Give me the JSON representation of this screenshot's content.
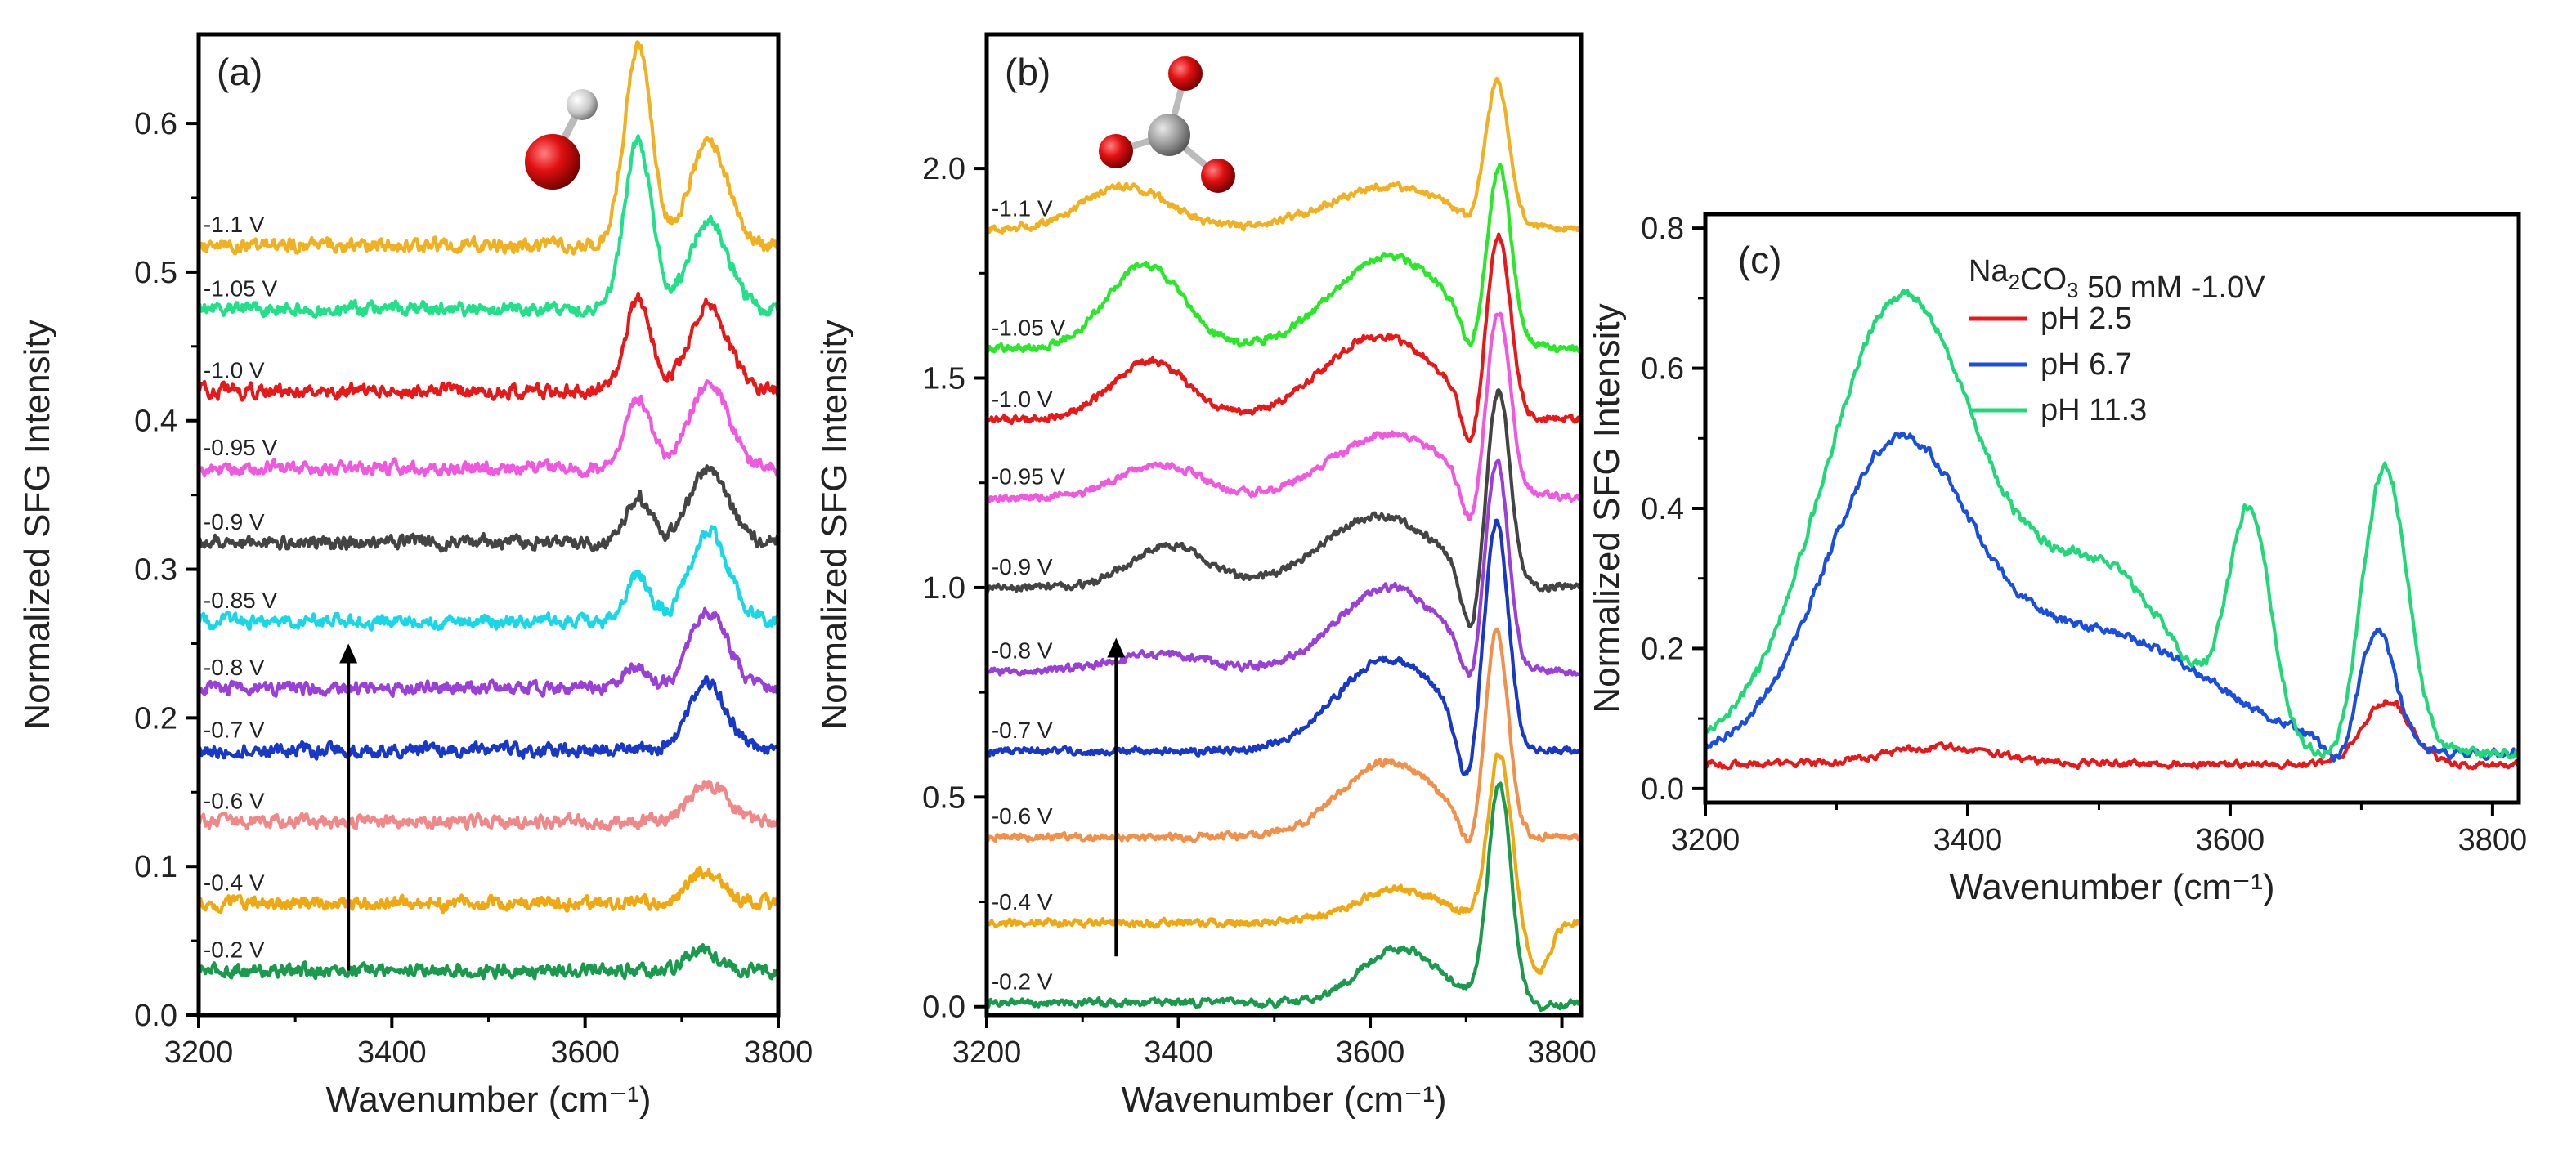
{
  "figure": {
    "xlabel": "Wavenumber (cm⁻¹)",
    "ylabel": "Normalized SFG Intensity"
  },
  "chart_data": [
    {
      "panel": "(a)",
      "type": "line",
      "xlim": [
        3200,
        3800
      ],
      "ylim": [
        0.0,
        0.66
      ],
      "xticks": [
        3200,
        3400,
        3600,
        3800
      ],
      "yticks": [
        0.0,
        0.1,
        0.2,
        0.3,
        0.4,
        0.5,
        0.6
      ],
      "ytick_decimals": 1,
      "xlabel": "Wavenumber (cm⁻¹)",
      "ylabel": "Normalized SFG Intensity",
      "molecule": "hydroxide",
      "arrow": {
        "x": 3355,
        "y_from": 0.03,
        "y_to": 0.25
      },
      "label_x": 3205,
      "series": [
        {
          "name": "-0.2 V",
          "color": "#1a9a4c",
          "base": 0.03,
          "peaks": [
            [
              3722,
              0.015,
              16
            ]
          ],
          "noise": 0.0035
        },
        {
          "name": "-0.4 V",
          "color": "#f0a810",
          "base": 0.075,
          "peaks": [
            [
              3725,
              0.022,
              18
            ]
          ],
          "noise": 0.0035
        },
        {
          "name": "-0.6 V",
          "color": "#f0888a",
          "base": 0.13,
          "peaks": [
            [
              3727,
              0.025,
              20
            ]
          ],
          "noise": 0.0035
        },
        {
          "name": "-0.7 V",
          "color": "#1838c8",
          "base": 0.178,
          "peaks": [
            [
              3727,
              0.045,
              20
            ]
          ],
          "noise": 0.0035
        },
        {
          "name": "-0.8 V",
          "color": "#9a40d8",
          "base": 0.22,
          "peaks": [
            [
              3650,
              0.015,
              12
            ],
            [
              3728,
              0.05,
              20
            ]
          ],
          "noise": 0.0035
        },
        {
          "name": "-0.85 V",
          "color": "#18d8e8",
          "base": 0.265,
          "peaks": [
            [
              3655,
              0.03,
              13
            ],
            [
              3728,
              0.06,
              20
            ]
          ],
          "noise": 0.0035
        },
        {
          "name": "-0.9 V",
          "color": "#444444",
          "base": 0.318,
          "peaks": [
            [
              3655,
              0.03,
              13
            ],
            [
              3728,
              0.05,
              20
            ]
          ],
          "noise": 0.0035
        },
        {
          "name": "-0.95 V",
          "color": "#f058e0",
          "base": 0.368,
          "peaks": [
            [
              3655,
              0.048,
              13
            ],
            [
              3728,
              0.058,
              20
            ]
          ],
          "noise": 0.0035
        },
        {
          "name": "-1.0 V",
          "color": "#e81818",
          "base": 0.42,
          "peaks": [
            [
              3655,
              0.062,
              13
            ],
            [
              3728,
              0.058,
              20
            ]
          ],
          "noise": 0.0035
        },
        {
          "name": "-1.05 V",
          "color": "#20e088",
          "base": 0.475,
          "peaks": [
            [
              3655,
              0.115,
              14
            ],
            [
              3728,
              0.06,
              20
            ]
          ],
          "noise": 0.0035
        },
        {
          "name": "-1.1 V",
          "color": "#f0b020",
          "base": 0.518,
          "peaks": [
            [
              3655,
              0.135,
              14
            ],
            [
              3728,
              0.068,
              20
            ]
          ],
          "noise": 0.0035
        }
      ]
    },
    {
      "panel": "(b)",
      "type": "line",
      "xlim": [
        3200,
        3820
      ],
      "ylim": [
        -0.02,
        2.32
      ],
      "xticks": [
        3200,
        3400,
        3600,
        3800
      ],
      "yticks": [
        0.0,
        0.5,
        1.0,
        1.5,
        2.0
      ],
      "ytick_decimals": 1,
      "xlabel": "Wavenumber (cm⁻¹)",
      "ylabel": "Normalized SFG Intensity",
      "molecule": "carbonate",
      "arrow": {
        "x": 3335,
        "y_from": 0.12,
        "y_to": 0.88
      },
      "label_x": 3205,
      "series": [
        {
          "name": "-0.2 V",
          "color": "#1a9a4c",
          "base": 0.01,
          "peaks": [
            [
              3630,
              0.13,
              40
            ],
            [
              3735,
              0.52,
              12
            ]
          ],
          "dip": [
            3780,
            -0.01,
            12
          ],
          "noise": 0.007
        },
        {
          "name": "-0.4 V",
          "color": "#f0a810",
          "base": 0.2,
          "peaks": [
            [
              3630,
              0.08,
              45
            ],
            [
              3735,
              0.4,
              12
            ]
          ],
          "dip": [
            3775,
            -0.12,
            12
          ],
          "noise": 0.007
        },
        {
          "name": "-0.6 V",
          "color": "#f0904a",
          "base": 0.405,
          "peaks": [
            [
              3620,
              0.18,
              50
            ],
            [
              3732,
              0.48,
              12
            ]
          ],
          "dip": [
            3706,
            -0.08,
            10
          ],
          "noise": 0.007
        },
        {
          "name": "-0.7 V",
          "color": "#1838c8",
          "base": 0.61,
          "peaks": [
            [
              3620,
              0.22,
              55
            ],
            [
              3732,
              0.52,
              12
            ]
          ],
          "dip": [
            3700,
            -0.15,
            10
          ],
          "noise": 0.007
        },
        {
          "name": "-0.8 V",
          "color": "#9a40d8",
          "base": 0.8,
          "peaks": [
            [
              3380,
              0.04,
              50
            ],
            [
              3620,
              0.2,
              55
            ],
            [
              3732,
              0.48,
              12
            ]
          ],
          "dip": [
            3706,
            -0.1,
            10
          ],
          "noise": 0.007
        },
        {
          "name": "-0.9 V",
          "color": "#444444",
          "base": 1.0,
          "peaks": [
            [
              3390,
              0.1,
              40
            ],
            [
              3610,
              0.17,
              60
            ],
            [
              3734,
              0.45,
              12
            ]
          ],
          "dip": [
            3705,
            -0.16,
            10
          ],
          "noise": 0.007
        },
        {
          "name": "-0.95 V",
          "color": "#f058e0",
          "base": 1.215,
          "peaks": [
            [
              3380,
              0.08,
              42
            ],
            [
              3620,
              0.15,
              60
            ],
            [
              3734,
              0.42,
              12
            ]
          ],
          "dip": [
            3705,
            -0.12,
            10
          ],
          "noise": 0.007
        },
        {
          "name": "-1.0 V",
          "color": "#e81818",
          "base": 1.4,
          "peaks": [
            [
              3370,
              0.14,
              40
            ],
            [
              3610,
              0.2,
              60
            ],
            [
              3734,
              0.42,
              12
            ]
          ],
          "dip": [
            3705,
            -0.12,
            10
          ],
          "noise": 0.007
        },
        {
          "name": "-1.05 V",
          "color": "#28e828",
          "base": 1.57,
          "peaks": [
            [
              3365,
              0.2,
              40
            ],
            [
              3620,
              0.22,
              60
            ],
            [
              3735,
              0.4,
              12
            ]
          ],
          "dip": [
            3705,
            -0.08,
            10
          ],
          "noise": 0.007
        },
        {
          "name": "-1.1 V",
          "color": "#f0b020",
          "base": 1.855,
          "peaks": [
            [
              3345,
              0.1,
              45
            ],
            [
              3620,
              0.1,
              65
            ],
            [
              3733,
              0.33,
              12
            ]
          ],
          "dip": [
            3700,
            -0.02,
            10
          ],
          "noise": 0.007
        }
      ]
    },
    {
      "panel": "(c)",
      "type": "line",
      "xlim": [
        3200,
        3820
      ],
      "ylim": [
        -0.02,
        0.82
      ],
      "xticks": [
        3200,
        3400,
        3600,
        3800
      ],
      "yticks": [
        0.0,
        0.2,
        0.4,
        0.6,
        0.8
      ],
      "ytick_decimals": 1,
      "xlabel": "Wavenumber (cm⁻¹)",
      "ylabel": "Normalized SFG Intensity",
      "legend": {
        "title_main": "Na",
        "title_sub1": "2",
        "title_mid": "CO",
        "title_sub2": "3",
        "title_rest": " 50 mM -1.0V",
        "position": "top-right"
      },
      "series": [
        {
          "name": "pH 2.5",
          "color": "#e81818",
          "base": 0.035,
          "peaks": [
            [
              3380,
              0.025,
              40
            ],
            [
              3720,
              0.09,
              18
            ]
          ],
          "noise": 0.004
        },
        {
          "name": "pH 6.7",
          "color": "#1a4ee0",
          "base": 0.05,
          "peaks": [
            [
              3345,
              0.42,
              55
            ],
            [
              3500,
              0.17,
              85
            ],
            [
              3712,
              0.17,
              14
            ]
          ],
          "dip": [
            3685,
            -0.04,
            10
          ],
          "noise": 0.005
        },
        {
          "name": "pH 11.3",
          "color": "#20d878",
          "base": 0.05,
          "peaks": [
            [
              3350,
              0.65,
              60
            ],
            [
              3505,
              0.25,
              55
            ],
            [
              3615,
              0.32,
              16
            ],
            [
              3718,
              0.41,
              17
            ]
          ],
          "dip": [
            3680,
            -0.02,
            10
          ],
          "noise": 0.006
        }
      ]
    }
  ]
}
